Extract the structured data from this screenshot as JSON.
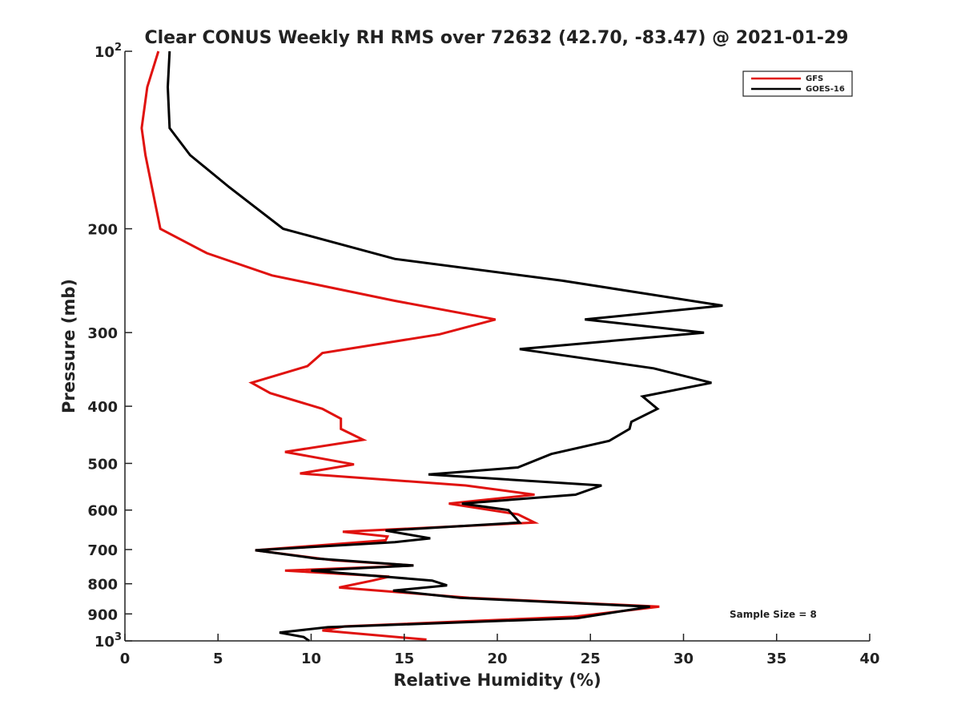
{
  "chart_data": {
    "type": "line",
    "title": "Clear CONUS Weekly RH RMS over 72632 (42.70, -83.47) @ 2021-01-29",
    "xlabel": "Relative Humidity (%)",
    "ylabel": "Pressure (mb)",
    "xlim": [
      0,
      40
    ],
    "ylim": [
      100,
      1000
    ],
    "y_scale": "log",
    "y_reversed": true,
    "grid": false,
    "legend_position": "top-right",
    "x_ticks": [
      "0",
      "5",
      "10",
      "15",
      "20",
      "25",
      "30",
      "35",
      "40"
    ],
    "y_ticks": [
      {
        "value": 100,
        "base": "10",
        "exp": "2"
      },
      {
        "value": 200,
        "label": "200"
      },
      {
        "value": 300,
        "label": "300"
      },
      {
        "value": 400,
        "label": "400"
      },
      {
        "value": 500,
        "label": "500"
      },
      {
        "value": 600,
        "label": "600"
      },
      {
        "value": 700,
        "label": "700"
      },
      {
        "value": 800,
        "label": "800"
      },
      {
        "value": 900,
        "label": "900"
      },
      {
        "value": 1000,
        "base": "10",
        "exp": "3"
      }
    ],
    "annotation": "Sample Size = 8",
    "series": [
      {
        "name": "GFS",
        "color": "#e0120f",
        "points": [
          [
            1.8,
            100
          ],
          [
            1.2,
            115
          ],
          [
            0.9,
            135
          ],
          [
            1.1,
            150
          ],
          [
            1.9,
            200
          ],
          [
            4.4,
            220
          ],
          [
            7.9,
            240
          ],
          [
            14.5,
            265
          ],
          [
            19.9,
            285
          ],
          [
            16.9,
            302
          ],
          [
            10.6,
            325
          ],
          [
            9.8,
            342
          ],
          [
            6.8,
            365
          ],
          [
            7.8,
            380
          ],
          [
            10.6,
            404
          ],
          [
            11.6,
            420
          ],
          [
            11.6,
            437
          ],
          [
            12.8,
            456
          ],
          [
            8.6,
            478
          ],
          [
            12.3,
            502
          ],
          [
            9.4,
            520
          ],
          [
            18.3,
            545
          ],
          [
            22.0,
            565
          ],
          [
            17.4,
            585
          ],
          [
            21.1,
            610
          ],
          [
            22.0,
            630
          ],
          [
            11.7,
            653
          ],
          [
            14.1,
            665
          ],
          [
            14.0,
            675
          ],
          [
            7.0,
            702
          ],
          [
            11.2,
            730
          ],
          [
            15.5,
            745
          ],
          [
            8.6,
            760
          ],
          [
            14.2,
            778
          ],
          [
            13.3,
            790
          ],
          [
            11.5,
            812
          ],
          [
            18.5,
            845
          ],
          [
            28.7,
            875
          ],
          [
            24.1,
            910
          ],
          [
            11.8,
            945
          ],
          [
            10.6,
            960
          ],
          [
            16.2,
            995
          ]
        ]
      },
      {
        "name": "GOES-16",
        "color": "#000000",
        "points": [
          [
            2.4,
            100
          ],
          [
            2.3,
            115
          ],
          [
            2.4,
            135
          ],
          [
            3.5,
            150
          ],
          [
            5.6,
            170
          ],
          [
            8.5,
            200
          ],
          [
            14.5,
            225
          ],
          [
            23.5,
            245
          ],
          [
            32.1,
            270
          ],
          [
            24.7,
            285
          ],
          [
            31.1,
            300
          ],
          [
            21.2,
            320
          ],
          [
            28.4,
            345
          ],
          [
            31.5,
            365
          ],
          [
            27.8,
            385
          ],
          [
            28.6,
            404
          ],
          [
            27.2,
            425
          ],
          [
            27.1,
            437
          ],
          [
            26.0,
            458
          ],
          [
            22.9,
            482
          ],
          [
            21.1,
            508
          ],
          [
            16.3,
            522
          ],
          [
            25.6,
            545
          ],
          [
            24.2,
            565
          ],
          [
            18.1,
            585
          ],
          [
            20.6,
            600
          ],
          [
            21.2,
            630
          ],
          [
            14.0,
            650
          ],
          [
            16.4,
            670
          ],
          [
            14.5,
            680
          ],
          [
            7.0,
            702
          ],
          [
            10.3,
            725
          ],
          [
            15.5,
            745
          ],
          [
            10.0,
            760
          ],
          [
            16.5,
            790
          ],
          [
            17.3,
            805
          ],
          [
            14.4,
            822
          ],
          [
            18.0,
            845
          ],
          [
            28.2,
            875
          ],
          [
            24.3,
            915
          ],
          [
            10.9,
            948
          ],
          [
            8.3,
            968
          ],
          [
            9.6,
            985
          ],
          [
            9.9,
            1000
          ]
        ]
      }
    ]
  }
}
